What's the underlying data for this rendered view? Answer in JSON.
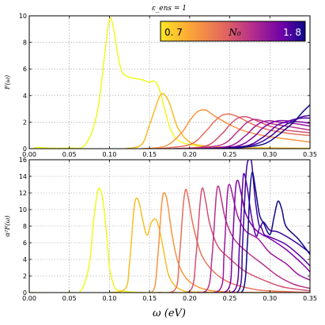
{
  "chart_data": [
    {
      "type": "line",
      "panel": "top",
      "title": "ε_ens = 1",
      "ylabel": "F(ω)",
      "xlim": [
        0.0,
        0.35
      ],
      "ylim": [
        0,
        10
      ],
      "xticks": [
        "0.00",
        "0.05",
        "0.10",
        "0.15",
        "0.20",
        "0.25",
        "0.30",
        "0.35"
      ],
      "yticks": [
        "0",
        "2",
        "4",
        "6",
        "8",
        "10"
      ],
      "grid": true,
      "colorbar": {
        "min_label": "0. 7",
        "mid_label": "N₀",
        "max_label": "1. 8",
        "placement": "top-right",
        "colors": [
          "#fde725",
          "#fca636",
          "#e16462",
          "#b12a90",
          "#6a00a8",
          "#0d0887"
        ]
      },
      "series": [
        {
          "color": "#f0f921",
          "x": [
            0.005,
            0.01,
            0.02,
            0.05,
            0.07,
            0.085,
            0.095,
            0.1,
            0.105,
            0.11,
            0.115,
            0.12,
            0.13,
            0.14,
            0.15,
            0.155,
            0.16,
            0.165,
            0.17,
            0.18,
            0.2,
            0.25,
            0.3,
            0.35
          ],
          "y": [
            0,
            0.1,
            0.05,
            0.05,
            0.3,
            2.8,
            7.6,
            9.8,
            9.1,
            7.2,
            5.9,
            5.5,
            5.3,
            5.2,
            5.0,
            5.1,
            4.8,
            3.9,
            2.7,
            1.0,
            0.3,
            0.1,
            0.05,
            0.02
          ]
        },
        {
          "color": "#f7be23",
          "x": [
            0.12,
            0.14,
            0.15,
            0.158,
            0.163,
            0.168,
            0.175,
            0.185,
            0.2,
            0.22,
            0.25,
            0.3,
            0.35
          ],
          "y": [
            0,
            0.3,
            1.8,
            3.2,
            4.0,
            4.1,
            3.4,
            1.6,
            0.5,
            0.2,
            0.1,
            0.05,
            0.02
          ]
        },
        {
          "color": "#f89540",
          "x": [
            0.14,
            0.17,
            0.19,
            0.2,
            0.21,
            0.22,
            0.23,
            0.25,
            0.27,
            0.3,
            0.35
          ],
          "y": [
            0,
            0.2,
            1.2,
            2.1,
            2.8,
            2.9,
            2.5,
            1.8,
            1.3,
            0.9,
            0.5
          ]
        },
        {
          "color": "#e76f5a",
          "x": [
            0.16,
            0.2,
            0.22,
            0.23,
            0.24,
            0.25,
            0.26,
            0.28,
            0.3,
            0.33,
            0.35
          ],
          "y": [
            0,
            0.3,
            1.3,
            2.0,
            2.5,
            2.6,
            2.4,
            1.8,
            1.4,
            1.1,
            1.0
          ]
        },
        {
          "color": "#d35171",
          "x": [
            0.18,
            0.22,
            0.24,
            0.25,
            0.26,
            0.27,
            0.28,
            0.3,
            0.32,
            0.35
          ],
          "y": [
            0,
            0.2,
            1.1,
            1.8,
            2.3,
            2.4,
            2.2,
            1.7,
            1.4,
            1.2
          ]
        },
        {
          "color": "#b83289",
          "x": [
            0.2,
            0.24,
            0.26,
            0.27,
            0.28,
            0.29,
            0.3,
            0.32,
            0.35
          ],
          "y": [
            0,
            0.3,
            1.3,
            1.9,
            2.2,
            2.1,
            1.9,
            1.7,
            1.4
          ]
        },
        {
          "color": "#9c179e",
          "x": [
            0.21,
            0.25,
            0.27,
            0.28,
            0.29,
            0.3,
            0.31,
            0.33,
            0.35
          ],
          "y": [
            0,
            0.2,
            1.0,
            1.6,
            2.0,
            2.1,
            2.0,
            1.9,
            1.7
          ]
        },
        {
          "color": "#7e03a8",
          "x": [
            0.22,
            0.26,
            0.28,
            0.29,
            0.3,
            0.31,
            0.32,
            0.34,
            0.35
          ],
          "y": [
            0,
            0.2,
            0.9,
            1.5,
            1.9,
            2.1,
            2.1,
            2.0,
            1.9
          ]
        },
        {
          "color": "#5c01a6",
          "x": [
            0.23,
            0.27,
            0.29,
            0.3,
            0.31,
            0.32,
            0.33,
            0.34,
            0.35
          ],
          "y": [
            0,
            0.2,
            0.8,
            1.3,
            1.8,
            2.0,
            2.2,
            2.3,
            2.3
          ]
        },
        {
          "color": "#3a049a",
          "x": [
            0.24,
            0.28,
            0.3,
            0.31,
            0.32,
            0.33,
            0.34,
            0.35
          ],
          "y": [
            0,
            0.3,
            0.9,
            1.4,
            1.8,
            2.1,
            2.4,
            2.5
          ]
        },
        {
          "color": "#0d0887",
          "x": [
            0.25,
            0.29,
            0.31,
            0.32,
            0.33,
            0.34,
            0.35
          ],
          "y": [
            0,
            0.3,
            1.0,
            1.5,
            2.0,
            2.7,
            3.3
          ]
        }
      ]
    },
    {
      "type": "line",
      "panel": "bottom",
      "ylabel": "α²F(ω)",
      "xlabel": "ω (eV)",
      "xlim": [
        0.0,
        0.35
      ],
      "ylim": [
        0,
        16
      ],
      "xticks": [
        "0.00",
        "0.05",
        "0.10",
        "0.15",
        "0.20",
        "0.25",
        "0.30",
        "0.35"
      ],
      "yticks": [
        "0",
        "2",
        "4",
        "6",
        "8",
        "10",
        "12",
        "14",
        "16"
      ],
      "grid": true,
      "series": [
        {
          "color": "#f0f921",
          "x": [
            0.0,
            0.05,
            0.065,
            0.075,
            0.08,
            0.085,
            0.088,
            0.092,
            0.097,
            0.1,
            0.105,
            0.11,
            0.13,
            0.15,
            0.2,
            0.35
          ],
          "y": [
            0,
            0,
            0.3,
            3.5,
            8.5,
            12.0,
            12.5,
            11.0,
            6.5,
            3.0,
            1.0,
            0.3,
            0.05,
            0,
            0,
            0
          ]
        },
        {
          "color": "#f7be23",
          "x": [
            0.1,
            0.12,
            0.125,
            0.13,
            0.133,
            0.137,
            0.142,
            0.147,
            0.152,
            0.158,
            0.163,
            0.168,
            0.175,
            0.19,
            0.22,
            0.35
          ],
          "y": [
            0,
            0.5,
            3.5,
            9.5,
            11.3,
            10.8,
            8.5,
            6.9,
            8.4,
            8.8,
            7.3,
            4.8,
            1.8,
            0.3,
            0.05,
            0
          ]
        },
        {
          "color": "#f89540",
          "x": [
            0.14,
            0.155,
            0.16,
            0.165,
            0.168,
            0.172,
            0.178,
            0.185,
            0.195,
            0.21,
            0.23,
            0.26,
            0.3,
            0.35
          ],
          "y": [
            0,
            0.3,
            4.0,
            10.5,
            12.0,
            11.0,
            7.0,
            3.8,
            1.8,
            0.7,
            0.2,
            0.05,
            0,
            0
          ]
        },
        {
          "color": "#e76f5a",
          "x": [
            0.16,
            0.182,
            0.187,
            0.192,
            0.195,
            0.198,
            0.205,
            0.215,
            0.23,
            0.25,
            0.28,
            0.3,
            0.35
          ],
          "y": [
            0,
            0.4,
            4.0,
            10.5,
            12.4,
            11.5,
            7.8,
            4.5,
            2.5,
            1.2,
            0.4,
            0.2,
            0
          ]
        },
        {
          "color": "#d35171",
          "x": [
            0.18,
            0.202,
            0.208,
            0.213,
            0.216,
            0.22,
            0.225,
            0.235,
            0.25,
            0.27,
            0.3,
            0.32,
            0.35
          ],
          "y": [
            0,
            0.4,
            4.5,
            10.8,
            12.6,
            11.0,
            8.3,
            5.6,
            4.1,
            2.5,
            1.2,
            0.6,
            0.2
          ]
        },
        {
          "color": "#b83289",
          "x": [
            0.2,
            0.222,
            0.228,
            0.233,
            0.236,
            0.24,
            0.245,
            0.255,
            0.27,
            0.29,
            0.31,
            0.33,
            0.35
          ],
          "y": [
            0,
            0.4,
            4.5,
            11.5,
            12.8,
            11.0,
            8.7,
            6.5,
            5.0,
            3.5,
            2.0,
            1.0,
            0.5
          ]
        },
        {
          "color": "#9c179e",
          "x": [
            0.21,
            0.238,
            0.243,
            0.247,
            0.25,
            0.254,
            0.26,
            0.27,
            0.285,
            0.3,
            0.32,
            0.335,
            0.35
          ],
          "y": [
            0,
            0.4,
            4.8,
            11.8,
            13.0,
            11.5,
            9.2,
            7.4,
            6.5,
            4.8,
            3.5,
            2.2,
            1.5
          ]
        },
        {
          "color": "#7e03a8",
          "x": [
            0.22,
            0.248,
            0.253,
            0.257,
            0.26,
            0.264,
            0.27,
            0.28,
            0.29,
            0.3,
            0.32,
            0.34,
            0.35
          ],
          "y": [
            0,
            0.4,
            5.2,
            12.2,
            13.5,
            12.0,
            9.5,
            7.8,
            7.0,
            6.5,
            5.2,
            3.5,
            2.5
          ]
        },
        {
          "color": "#5c01a6",
          "x": [
            0.23,
            0.257,
            0.262,
            0.266,
            0.268,
            0.272,
            0.277,
            0.283,
            0.288,
            0.293,
            0.3,
            0.32,
            0.34,
            0.35
          ],
          "y": [
            0,
            0.4,
            5.5,
            13.0,
            14.3,
            12.5,
            9.2,
            6.8,
            8.0,
            7.0,
            6.7,
            5.8,
            4.2,
            3.2
          ]
        },
        {
          "color": "#3a049a",
          "x": [
            0.24,
            0.262,
            0.266,
            0.27,
            0.273,
            0.277,
            0.282,
            0.287,
            0.292,
            0.3,
            0.31,
            0.33,
            0.35
          ],
          "y": [
            0,
            0.4,
            6.0,
            13.8,
            16.0,
            15.8,
            11.0,
            8.0,
            8.5,
            7.5,
            7.3,
            6.2,
            4.8
          ]
        },
        {
          "color": "#0d0887",
          "x": [
            0.25,
            0.267,
            0.272,
            0.275,
            0.278,
            0.282,
            0.287,
            0.292,
            0.3,
            0.305,
            0.31,
            0.315,
            0.32,
            0.335,
            0.35
          ],
          "y": [
            0,
            0.4,
            6.0,
            12.0,
            14.5,
            12.5,
            9.4,
            8.4,
            7.0,
            9.0,
            11.0,
            10.0,
            8.0,
            6.5,
            4.6
          ]
        }
      ]
    }
  ]
}
